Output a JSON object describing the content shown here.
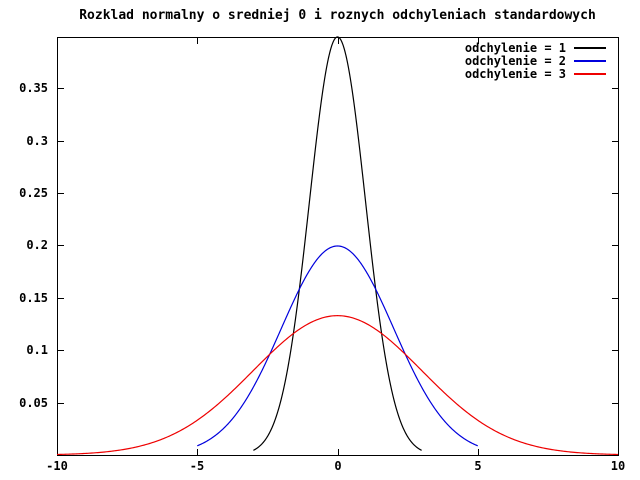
{
  "chart_data": {
    "type": "line",
    "title": "Rozklad normalny o sredniej 0 i roznych odchyleniach standardowych",
    "xlabel": "",
    "ylabel": "",
    "grid": false,
    "legend_position": "top-right",
    "background_color": "#ffffff",
    "border_color": "#000000",
    "x_axis": {
      "min": -10,
      "max": 10,
      "ticks": [
        -10,
        -5,
        0,
        5,
        10
      ],
      "tick_labels": [
        "-10",
        "-5",
        "0",
        "5",
        "10"
      ]
    },
    "y_axis": {
      "min": 0,
      "max": 0.3989,
      "ticks": [
        0.05,
        0.1,
        0.15,
        0.2,
        0.25,
        0.3,
        0.35
      ],
      "tick_labels": [
        "0.05",
        "0.1",
        "0.15",
        "0.2",
        "0.25",
        "0.3",
        "0.35"
      ]
    },
    "function": "normal_pdf: y = exp(-(x-mean)^2/(2*sigma^2)) / (sigma*sqrt(2*pi))",
    "mean": 0,
    "series": [
      {
        "name": "odchylenie = 1",
        "sigma": 1,
        "color": "#000000",
        "x_range": [
          -3,
          3
        ],
        "peak_y": 0.3989,
        "sample_x": [
          -3,
          -2,
          -1,
          0,
          1,
          2,
          3
        ],
        "sample_y": [
          0.0044,
          0.054,
          0.242,
          0.3989,
          0.242,
          0.054,
          0.0044
        ]
      },
      {
        "name": "odchylenie = 2",
        "sigma": 2,
        "color": "#0000dd",
        "x_range": [
          -5,
          5
        ],
        "peak_y": 0.1995,
        "sample_x": [
          -5,
          -4,
          -3,
          -2,
          -1,
          0,
          1,
          2,
          3,
          4,
          5
        ],
        "sample_y": [
          0.0088,
          0.027,
          0.0648,
          0.121,
          0.176,
          0.1995,
          0.176,
          0.121,
          0.0648,
          0.027,
          0.0088
        ]
      },
      {
        "name": "odchylenie = 3",
        "sigma": 3,
        "color": "#ee0000",
        "x_range": [
          -10,
          10
        ],
        "peak_y": 0.133,
        "sample_x": [
          -10,
          -8,
          -6,
          -4,
          -2,
          0,
          2,
          4,
          6,
          8,
          10
        ],
        "sample_y": [
          0.0005,
          0.0038,
          0.018,
          0.0547,
          0.1065,
          0.133,
          0.1065,
          0.0547,
          0.018,
          0.0038,
          0.0005
        ]
      }
    ]
  }
}
